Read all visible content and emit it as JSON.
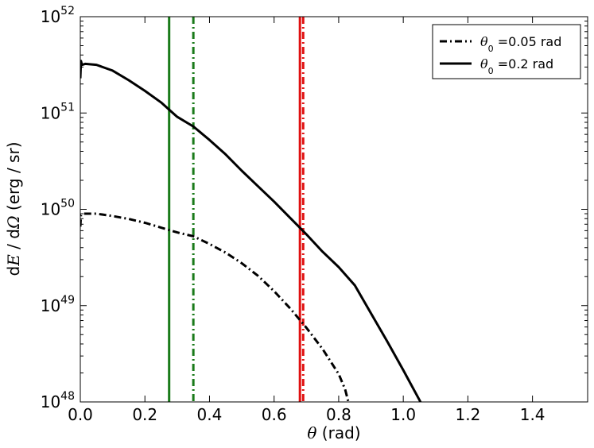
{
  "chart_data": {
    "type": "line",
    "x_scale": "linear",
    "y_scale": "log",
    "xlim": [
      0.0,
      1.5708
    ],
    "ylim": [
      1e+48,
      1e+52
    ],
    "grid": false,
    "legend_position": "top-right",
    "xlabel": {
      "symbol": "θ",
      "text": " (rad)"
    },
    "ylabel": {
      "d1": "d",
      "E": "E",
      "mid": " / d",
      "Omega": "Ω",
      "unit": " (erg / sr)"
    },
    "x_ticks": [
      {
        "value": 0.0,
        "label": "0.0"
      },
      {
        "value": 0.2,
        "label": "0.2"
      },
      {
        "value": 0.4,
        "label": "0.4"
      },
      {
        "value": 0.6,
        "label": "0.6"
      },
      {
        "value": 0.8,
        "label": "0.8"
      },
      {
        "value": 1.0,
        "label": "1.0"
      },
      {
        "value": 1.2,
        "label": "1.2"
      },
      {
        "value": 1.4,
        "label": "1.4"
      }
    ],
    "y_ticks": [
      {
        "value": 48,
        "base": "10",
        "exp": "48"
      },
      {
        "value": 49,
        "base": "10",
        "exp": "49"
      },
      {
        "value": 50,
        "base": "10",
        "exp": "50"
      },
      {
        "value": 51,
        "base": "10",
        "exp": "51"
      },
      {
        "value": 52,
        "base": "10",
        "exp": "52"
      }
    ],
    "series": [
      {
        "key": "theta005",
        "legend_math": "θ",
        "legend_sub": "0",
        "legend_rest": " =0.05 rad",
        "style": "dashdot",
        "color": "#000000",
        "points": [
          [
            0.0,
            49.82
          ],
          [
            0.002,
            49.94
          ],
          [
            0.01,
            49.955
          ],
          [
            0.05,
            49.955
          ],
          [
            0.1,
            49.93
          ],
          [
            0.15,
            49.9
          ],
          [
            0.2,
            49.86
          ],
          [
            0.25,
            49.81
          ],
          [
            0.3,
            49.76
          ],
          [
            0.35,
            49.72
          ],
          [
            0.4,
            49.64
          ],
          [
            0.45,
            49.55
          ],
          [
            0.5,
            49.44
          ],
          [
            0.55,
            49.31
          ],
          [
            0.6,
            49.15
          ],
          [
            0.65,
            48.97
          ],
          [
            0.7,
            48.77
          ],
          [
            0.75,
            48.55
          ],
          [
            0.8,
            48.29
          ],
          [
            0.82,
            48.13
          ],
          [
            0.83,
            48.0
          ]
        ]
      },
      {
        "key": "theta02",
        "legend_math": "θ",
        "legend_sub": "0",
        "legend_rest": " =0.2 rad",
        "style": "solid",
        "color": "#000000",
        "points": [
          [
            0.0,
            51.36
          ],
          [
            0.002,
            51.54
          ],
          [
            0.005,
            51.5
          ],
          [
            0.015,
            51.51
          ],
          [
            0.05,
            51.5
          ],
          [
            0.1,
            51.44
          ],
          [
            0.15,
            51.34
          ],
          [
            0.2,
            51.23
          ],
          [
            0.25,
            51.11
          ],
          [
            0.28,
            51.02
          ],
          [
            0.3,
            50.96
          ],
          [
            0.35,
            50.86
          ],
          [
            0.4,
            50.72
          ],
          [
            0.45,
            50.57
          ],
          [
            0.5,
            50.4
          ],
          [
            0.55,
            50.24
          ],
          [
            0.6,
            50.08
          ],
          [
            0.65,
            49.91
          ],
          [
            0.7,
            49.74
          ],
          [
            0.75,
            49.56
          ],
          [
            0.8,
            49.4
          ],
          [
            0.85,
            49.21
          ],
          [
            0.9,
            48.92
          ],
          [
            0.95,
            48.63
          ],
          [
            1.0,
            48.33
          ],
          [
            1.05,
            48.02
          ],
          [
            1.08,
            47.82
          ],
          [
            1.1,
            47.65
          ],
          [
            1.12,
            47.45
          ]
        ]
      }
    ],
    "vertical_lines": [
      {
        "key": "vl-green-solid",
        "x": 0.275,
        "color": "#1a7a1a",
        "style": "solid"
      },
      {
        "key": "vl-green-dashdot",
        "x": 0.35,
        "color": "#1a7a1a",
        "style": "dashdot"
      },
      {
        "key": "vl-red-solid",
        "x": 0.68,
        "color": "#e01010",
        "style": "solid"
      },
      {
        "key": "vl-red-dashdot",
        "x": 0.69,
        "color": "#e01010",
        "style": "dashdot"
      }
    ]
  }
}
